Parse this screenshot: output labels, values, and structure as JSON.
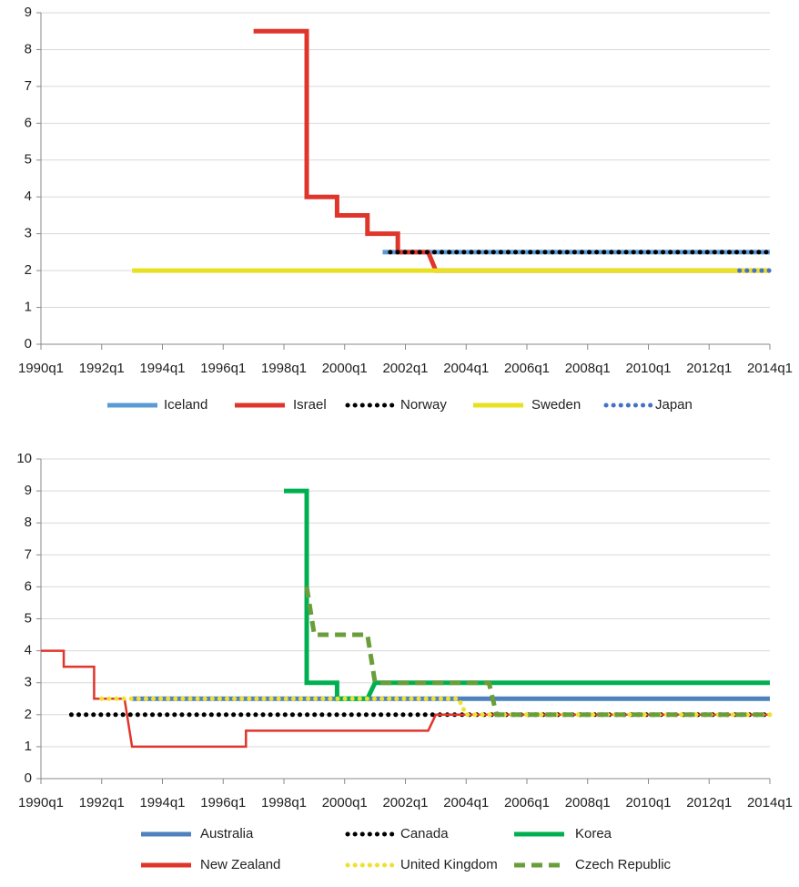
{
  "chart_data": [
    {
      "type": "line",
      "grid": true,
      "legend": "bottom",
      "xlim": [
        1990,
        2014
      ],
      "xticks": [
        {
          "value": 1990,
          "label": "1990q1"
        },
        {
          "value": 1992,
          "label": "1992q1"
        },
        {
          "value": 1994,
          "label": "1994q1"
        },
        {
          "value": 1996,
          "label": "1996q1"
        },
        {
          "value": 1998,
          "label": "1998q1"
        },
        {
          "value": 2000,
          "label": "2000q1"
        },
        {
          "value": 2002,
          "label": "2002q1"
        },
        {
          "value": 2004,
          "label": "2004q1"
        },
        {
          "value": 2006,
          "label": "2006q1"
        },
        {
          "value": 2008,
          "label": "2008q1"
        },
        {
          "value": 2010,
          "label": "2010q1"
        },
        {
          "value": 2012,
          "label": "2012q1"
        },
        {
          "value": 2014,
          "label": "2014q1"
        }
      ],
      "ylim": [
        0,
        9
      ],
      "yticks": [
        0,
        1,
        2,
        3,
        4,
        5,
        6,
        7,
        8,
        9
      ],
      "series": [
        {
          "name": "Iceland",
          "color": "#5b9bd5",
          "dash": "solid",
          "weight": "thick",
          "x": [
            2001.25,
            2014
          ],
          "values": [
            2.5,
            2.5
          ]
        },
        {
          "name": "Israel",
          "color": "#e0352b",
          "dash": "solid",
          "weight": "thick",
          "x": [
            1997,
            1998.75,
            1998.75,
            1999.75,
            1999.75,
            2000.75,
            2000.75,
            2001.75,
            2001.75,
            2002.75,
            2003,
            2014
          ],
          "values": [
            8.5,
            8.5,
            4,
            4,
            3.5,
            3.5,
            3,
            3,
            2.5,
            2.5,
            2,
            2
          ]
        },
        {
          "name": "Norway",
          "color": "#000000",
          "dash": "dot",
          "weight": "thick",
          "x": [
            2001.5,
            2014
          ],
          "values": [
            2.5,
            2.5
          ]
        },
        {
          "name": "Sweden",
          "color": "#e8e020",
          "dash": "solid",
          "weight": "thick",
          "x": [
            1993,
            2014
          ],
          "values": [
            2,
            2
          ]
        },
        {
          "name": "Japan",
          "color": "#4472c4",
          "dash": "dot",
          "weight": "thick",
          "x": [
            2013,
            2014
          ],
          "values": [
            2,
            2
          ]
        }
      ]
    },
    {
      "type": "line",
      "grid": true,
      "legend": "bottom",
      "xlim": [
        1990,
        2014
      ],
      "xticks": [
        {
          "value": 1990,
          "label": "1990q1"
        },
        {
          "value": 1992,
          "label": "1992q1"
        },
        {
          "value": 1994,
          "label": "1994q1"
        },
        {
          "value": 1996,
          "label": "1996q1"
        },
        {
          "value": 1998,
          "label": "1998q1"
        },
        {
          "value": 2000,
          "label": "2000q1"
        },
        {
          "value": 2002,
          "label": "2002q1"
        },
        {
          "value": 2004,
          "label": "2004q1"
        },
        {
          "value": 2006,
          "label": "2006q1"
        },
        {
          "value": 2008,
          "label": "2008q1"
        },
        {
          "value": 2010,
          "label": "2010q1"
        },
        {
          "value": 2012,
          "label": "2012q1"
        },
        {
          "value": 2014,
          "label": "2014q1"
        }
      ],
      "ylim": [
        0,
        10
      ],
      "yticks": [
        0,
        1,
        2,
        3,
        4,
        5,
        6,
        7,
        8,
        9,
        10
      ],
      "series": [
        {
          "name": "Australia",
          "color": "#4f81bd",
          "dash": "solid",
          "weight": "thick",
          "x": [
            1993,
            2014
          ],
          "values": [
            2.5,
            2.5
          ]
        },
        {
          "name": "Canada",
          "color": "#000000",
          "dash": "dot",
          "weight": "thick",
          "x": [
            1991,
            2014
          ],
          "values": [
            2,
            2
          ]
        },
        {
          "name": "Korea",
          "color": "#00b050",
          "dash": "solid",
          "weight": "thick",
          "x": [
            1998,
            1998.75,
            1998.75,
            1999.75,
            1999.75,
            2000.75,
            2001,
            2014
          ],
          "values": [
            9,
            9,
            3,
            3,
            2.5,
            2.5,
            3,
            3
          ]
        },
        {
          "name": "New Zealand",
          "color": "#e0352b",
          "dash": "solid",
          "weight": "thin",
          "x": [
            1990,
            1990.75,
            1990.75,
            1991.75,
            1991.75,
            1992.75,
            1993,
            1996.75,
            1996.75,
            2002.75,
            2003,
            2014
          ],
          "values": [
            4,
            4,
            3.5,
            3.5,
            2.5,
            2.5,
            1,
            1,
            1.5,
            1.5,
            2,
            2
          ]
        },
        {
          "name": "United Kingdom",
          "color": "#f0e030",
          "dash": "dot",
          "weight": "thick",
          "x": [
            1992,
            2003.75,
            2004,
            2014
          ],
          "values": [
            2.5,
            2.5,
            2,
            2
          ]
        },
        {
          "name": "Czech Republic",
          "color": "#6a9e3a",
          "dash": "dash",
          "weight": "thick",
          "x": [
            1998.75,
            1999,
            2000.75,
            2001,
            2004.75,
            2005,
            2014
          ],
          "values": [
            6,
            4.5,
            4.5,
            3,
            3,
            2,
            2
          ]
        }
      ]
    }
  ]
}
